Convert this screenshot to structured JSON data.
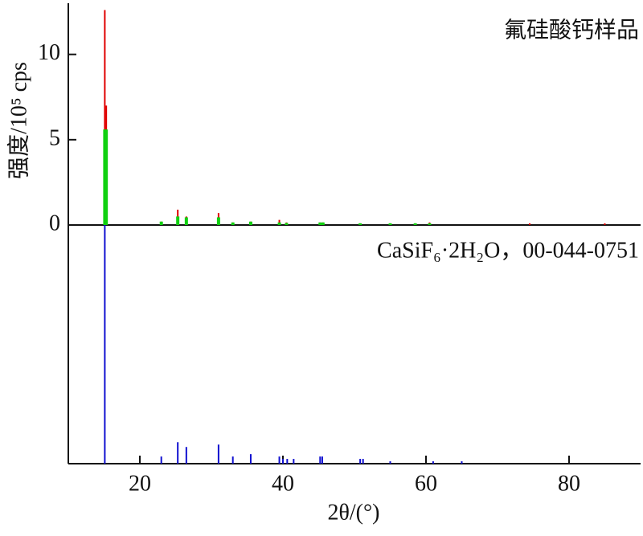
{
  "chart_data": [
    {
      "type": "stick",
      "title": "氟硅酸钙样品",
      "ylabel": "强度/10⁵ cps",
      "ylim": [
        0,
        13
      ],
      "yticks": [
        0,
        5,
        10
      ],
      "x": [
        15.1,
        15.3,
        23.0,
        25.3,
        26.5,
        31.0,
        33.0,
        35.5,
        39.5,
        40.5,
        45.2,
        45.6,
        50.8,
        55.0,
        58.5,
        60.5,
        74.5,
        85.0
      ],
      "series": [
        {
          "color": "#e00000",
          "values": [
            12.6,
            7.0,
            0.2,
            0.9,
            0.5,
            0.7,
            0.15,
            0.2,
            0.3,
            0.15,
            0.15,
            0.15,
            0.1,
            0.1,
            0.1,
            0.15,
            0.1,
            0.1
          ]
        },
        {
          "color": "#10d010",
          "values": [
            5.6,
            5.6,
            0.2,
            0.5,
            0.45,
            0.45,
            0.15,
            0.2,
            0.15,
            0.12,
            0.15,
            0.15,
            0.1,
            0.1,
            0.1,
            0.1,
            0,
            0
          ]
        }
      ]
    },
    {
      "type": "stick",
      "title": "CaSiF₆·2H₂O，00-044-0751",
      "xlabel": "2θ/(°)",
      "xlim": [
        10,
        90
      ],
      "xticks": [
        20,
        40,
        60,
        80
      ],
      "ylim": [
        0,
        100
      ],
      "x": [
        15.1,
        23.0,
        25.3,
        26.5,
        31.0,
        33.0,
        35.5,
        39.5,
        40.0,
        40.6,
        41.5,
        45.2,
        45.5,
        50.8,
        51.2,
        55.0,
        61.0,
        65.0
      ],
      "series": [
        {
          "color": "#1010d0",
          "values": [
            100,
            3,
            9,
            7,
            8,
            3,
            4,
            3,
            2,
            2,
            2,
            3,
            3,
            2,
            2,
            1,
            1,
            1
          ]
        }
      ]
    }
  ]
}
